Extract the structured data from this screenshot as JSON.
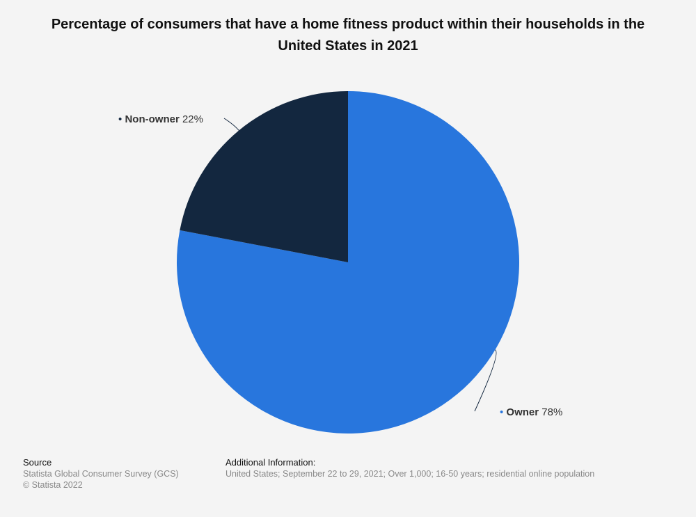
{
  "chart_data": {
    "type": "pie",
    "title": "Percentage of consumers that have a home fitness product within their households in the United States in 2021",
    "slices": [
      {
        "label": "Owner",
        "value": 78,
        "value_label": "78%",
        "color": "#2876dd"
      },
      {
        "label": "Non-owner",
        "value": 22,
        "value_label": "22%",
        "color": "#13273f"
      }
    ],
    "start": "12 o'clock",
    "direction": "clockwise"
  },
  "footer": {
    "source_heading": "Source",
    "source_text": "Statista Global Consumer Survey (GCS)",
    "copyright": "© Statista 2022",
    "additional_heading": "Additional Information:",
    "additional_text": "United States; September 22 to 29, 2021; Over 1,000; 16-50 years; residential online population"
  }
}
